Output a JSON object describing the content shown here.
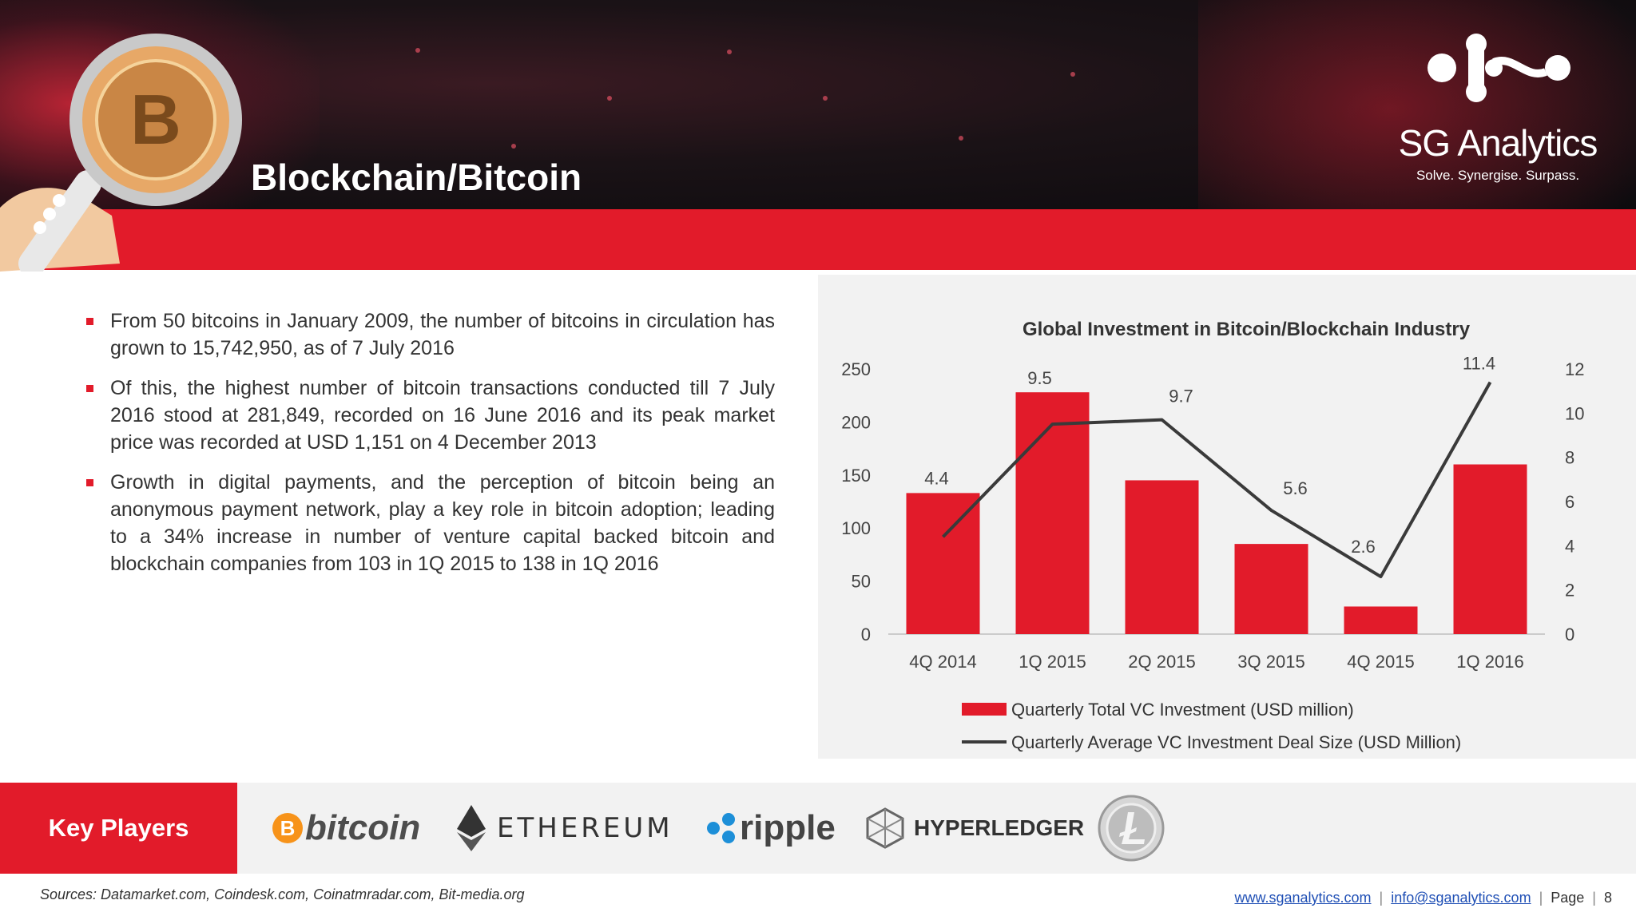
{
  "header": {
    "title": "Blockchain/Bitcoin",
    "logo_name": "SG Analytics",
    "logo_tagline": "Solve. Synergise. Surpass."
  },
  "bullets": [
    "From 50 bitcoins in January 2009, the number of bitcoins in circulation has grown to 15,742,950, as of 7 July 2016",
    "Of this, the highest number of bitcoin transactions conducted till 7 July 2016 stood at 281,849, recorded on 16 June 2016 and its peak market price was recorded at USD 1,151 on 4 December 2013",
    "Growth in digital payments, and the perception of bitcoin being an anonymous payment network, play a key role in bitcoin adoption; leading to a 34% increase in number of venture capital backed bitcoin and blockchain companies from 103 in 1Q 2015 to 138 in 1Q 2016"
  ],
  "chart_data": {
    "type": "bar",
    "title": "Global Investment in Bitcoin/Blockchain Industry",
    "categories": [
      "4Q 2014",
      "1Q 2015",
      "2Q 2015",
      "3Q 2015",
      "4Q 2015",
      "1Q 2016"
    ],
    "series": [
      {
        "name": "Quarterly Total VC Investment (USD million)",
        "type": "bar",
        "axis": "left",
        "values": [
          133,
          228,
          145,
          85,
          26,
          160
        ]
      },
      {
        "name": "Quarterly Average VC Investment Deal Size (USD Million)",
        "type": "line",
        "axis": "right",
        "values": [
          4.4,
          9.5,
          9.7,
          5.6,
          2.6,
          11.4
        ],
        "labels": [
          "4.4",
          "9.5",
          "9.7",
          "5.6",
          "2.6",
          "11.4"
        ]
      }
    ],
    "y_left": {
      "ylim": [
        0,
        250
      ],
      "ticks": [
        "0",
        "50",
        "100",
        "150",
        "200",
        "250"
      ]
    },
    "y_right": {
      "ylim": [
        0,
        12
      ],
      "ticks": [
        "0",
        "2",
        "4",
        "6",
        "8",
        "10",
        "12"
      ]
    },
    "legend_position": "bottom",
    "grid": false,
    "colors": {
      "bar": "#e21b2a",
      "line": "#3a3a3a"
    }
  },
  "key_players": {
    "label": "Key Players",
    "items": [
      {
        "name": "bitcoin",
        "icon": "bitcoin-logo-icon"
      },
      {
        "name": "ETHEREUM",
        "icon": "ethereum-diamond-icon"
      },
      {
        "name": "ripple",
        "icon": "ripple-logo-icon"
      },
      {
        "name": "HYPERLEDGER",
        "icon": "hyperledger-logo-icon"
      },
      {
        "name": "",
        "icon": "litecoin-coin-icon"
      }
    ]
  },
  "footer": {
    "sources": "Sources: Datamarket.com, Coindesk.com, Coinatmradar.com, Bit-media.org",
    "website": "www.sganalytics.com",
    "email": "info@sganalytics.com",
    "page_label": "Page",
    "page_number": "8"
  },
  "colors": {
    "accent_red": "#e21b2a",
    "dark": "#1a1216"
  }
}
